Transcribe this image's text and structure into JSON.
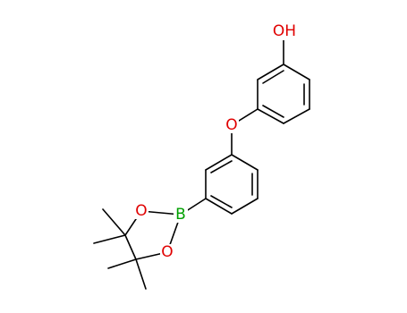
{
  "atoms": [
    {
      "label": "OH"
    },
    {
      "label": "O"
    },
    {
      "label": "B"
    },
    {
      "label": "O"
    },
    {
      "label": "O"
    }
  ]
}
